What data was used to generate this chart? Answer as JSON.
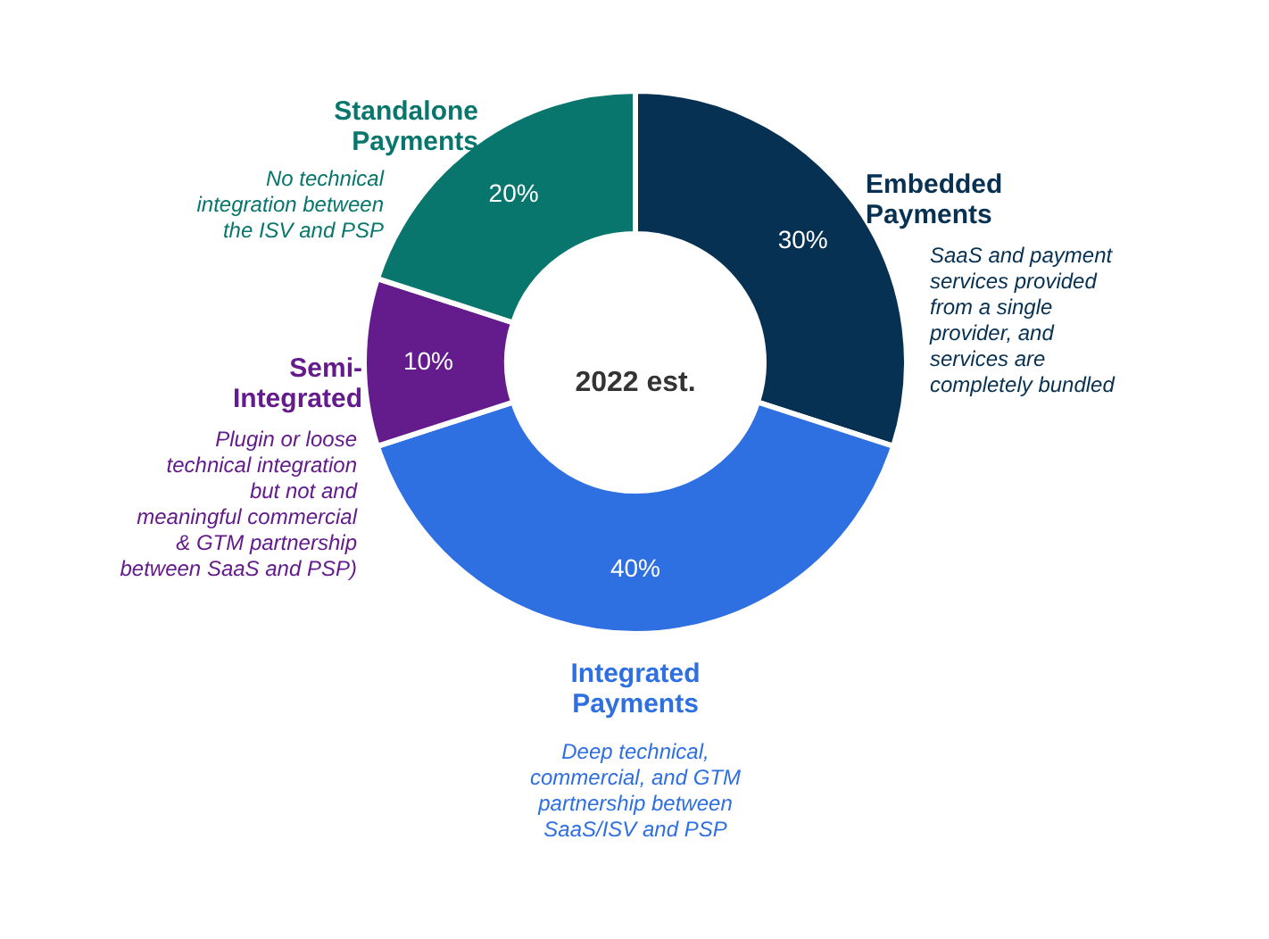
{
  "chart_data": {
    "type": "donut",
    "categories": [
      "Embedded Payments",
      "Integrated Payments",
      "Semi-Integrated",
      "Standalone Payments"
    ],
    "values": [
      30,
      40,
      10,
      20
    ],
    "value_labels": [
      "30%",
      "40%",
      "10%",
      "20%"
    ],
    "colors": [
      "#073152",
      "#2e6fe2",
      "#641c8c",
      "#08766c"
    ],
    "annotations": [
      "SaaS and payment services provided from a single provider, and services are completely bundled",
      "Deep technical, commercial, and GTM partnership between SaaS/ISV and PSP",
      "Plugin or loose technical integration but not and meaningful commercial & GTM partnership between SaaS and PSP)",
      "No technical integration between the ISV and PSP",
      "2022 est."
    ]
  }
}
